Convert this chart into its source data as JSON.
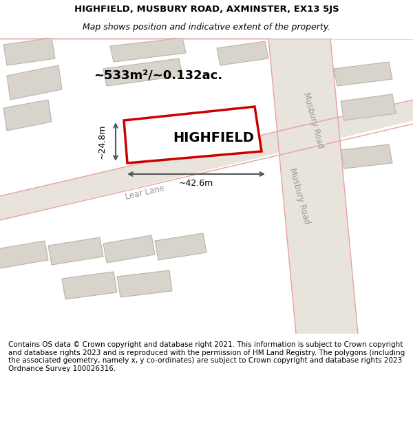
{
  "title_line1": "HIGHFIELD, MUSBURY ROAD, AXMINSTER, EX13 5JS",
  "title_line2": "Map shows position and indicative extent of the property.",
  "area_text": "~533m²/~0.132ac.",
  "property_name": "HIGHFIELD",
  "dim_width": "~42.6m",
  "dim_height": "~24.8m",
  "road_label_1": "Musbury Road",
  "road_label_2": "Lear Lane",
  "road_label_3": "Musbury Road",
  "road_label_4": "Lear Lane",
  "footer_text": "Contains OS data © Crown copyright and database right 2021. This information is subject to Crown copyright and database rights 2023 and is reproduced with the permission of HM Land Registry. The polygons (including the associated geometry, namely x, y co-ordinates) are subject to Crown copyright and database rights 2023 Ordnance Survey 100026316.",
  "bg_color": "#f5f5f5",
  "map_bg": "#f0eeec",
  "road_color": "#d8d4cc",
  "building_fill": "#d8d4cc",
  "building_edge": "#b8b4ac",
  "property_fill": "white",
  "property_edge": "#cc0000",
  "road_line_color": "#e8a0a0",
  "dim_line_color": "#555555",
  "title_fontsize": 9.5,
  "footer_fontsize": 7.5
}
